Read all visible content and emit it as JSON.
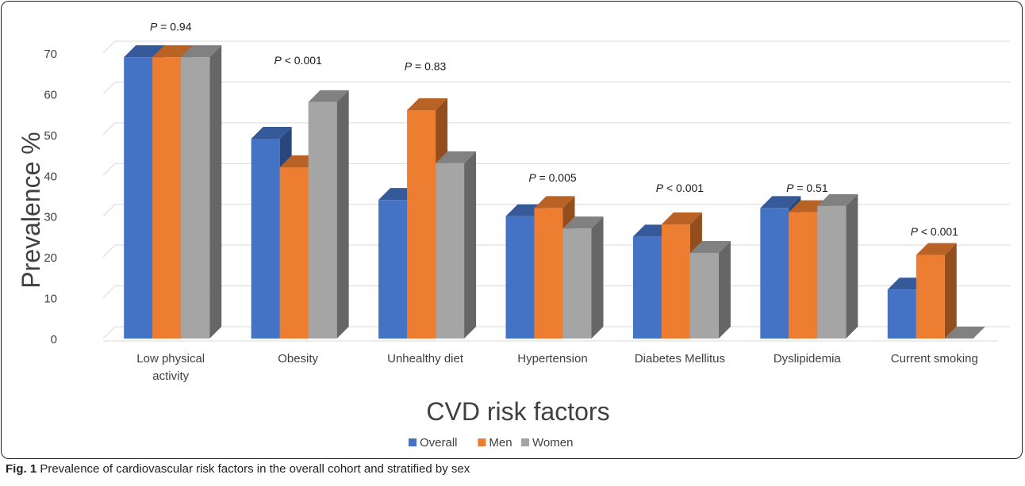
{
  "chart_data": {
    "type": "bar",
    "style": "3d-clustered-column",
    "xlabel": "CVD risk factors",
    "ylabel": "Prevalence %",
    "ylim": [
      0,
      70
    ],
    "yticks": [
      0,
      10,
      20,
      30,
      40,
      50,
      60,
      70
    ],
    "grid": true,
    "legend_position": "bottom",
    "categories": [
      "Low physical activity",
      "Obesity",
      "Unhealthy diet",
      "Hypertension",
      "Diabetes Mellitus",
      "Dyslipidemia",
      "Current smoking"
    ],
    "category_lines": [
      [
        "Low physical",
        "activity"
      ],
      [
        "Obesity"
      ],
      [
        "Unhealthy diet"
      ],
      [
        "Hypertension"
      ],
      [
        "Diabetes Mellitus"
      ],
      [
        "Dyslipidemia"
      ],
      [
        "Current smoking"
      ]
    ],
    "series": [
      {
        "name": "Overall",
        "color": "#4472C4",
        "values": [
          69,
          49,
          34,
          30,
          25,
          32,
          12
        ]
      },
      {
        "name": "Men",
        "color": "#ED7D31",
        "values": [
          69,
          42,
          56,
          32,
          28,
          31,
          20.5
        ]
      },
      {
        "name": "Women",
        "color": "#A5A5A5",
        "values": [
          69,
          58,
          43,
          27,
          21,
          32.5,
          0
        ]
      }
    ],
    "annotations": [
      {
        "p_label": "P",
        "text": " = 0.94",
        "category": "Low physical activity",
        "level": 75.5
      },
      {
        "p_label": "P",
        "text": " < 0.001",
        "category": "Obesity",
        "level": 67.3
      },
      {
        "p_label": "P",
        "text": " = 0.83",
        "category": "Unhealthy diet",
        "level": 65.8
      },
      {
        "p_label": "P",
        "text": " = 0.005",
        "category": "Hypertension",
        "level": 38.5
      },
      {
        "p_label": "P",
        "text": " < 0.001",
        "category": "Diabetes Mellitus",
        "level": 36
      },
      {
        "p_label": "P",
        "text": " = 0.51",
        "category": "Dyslipidemia",
        "level": 36
      },
      {
        "p_label": "P",
        "text": " < 0.001",
        "category": "Current smoking",
        "level": 25.3
      }
    ]
  },
  "caption": {
    "label": "Fig. 1",
    "text": " Prevalence of cardiovascular risk factors in the overall cohort and stratified by sex"
  }
}
